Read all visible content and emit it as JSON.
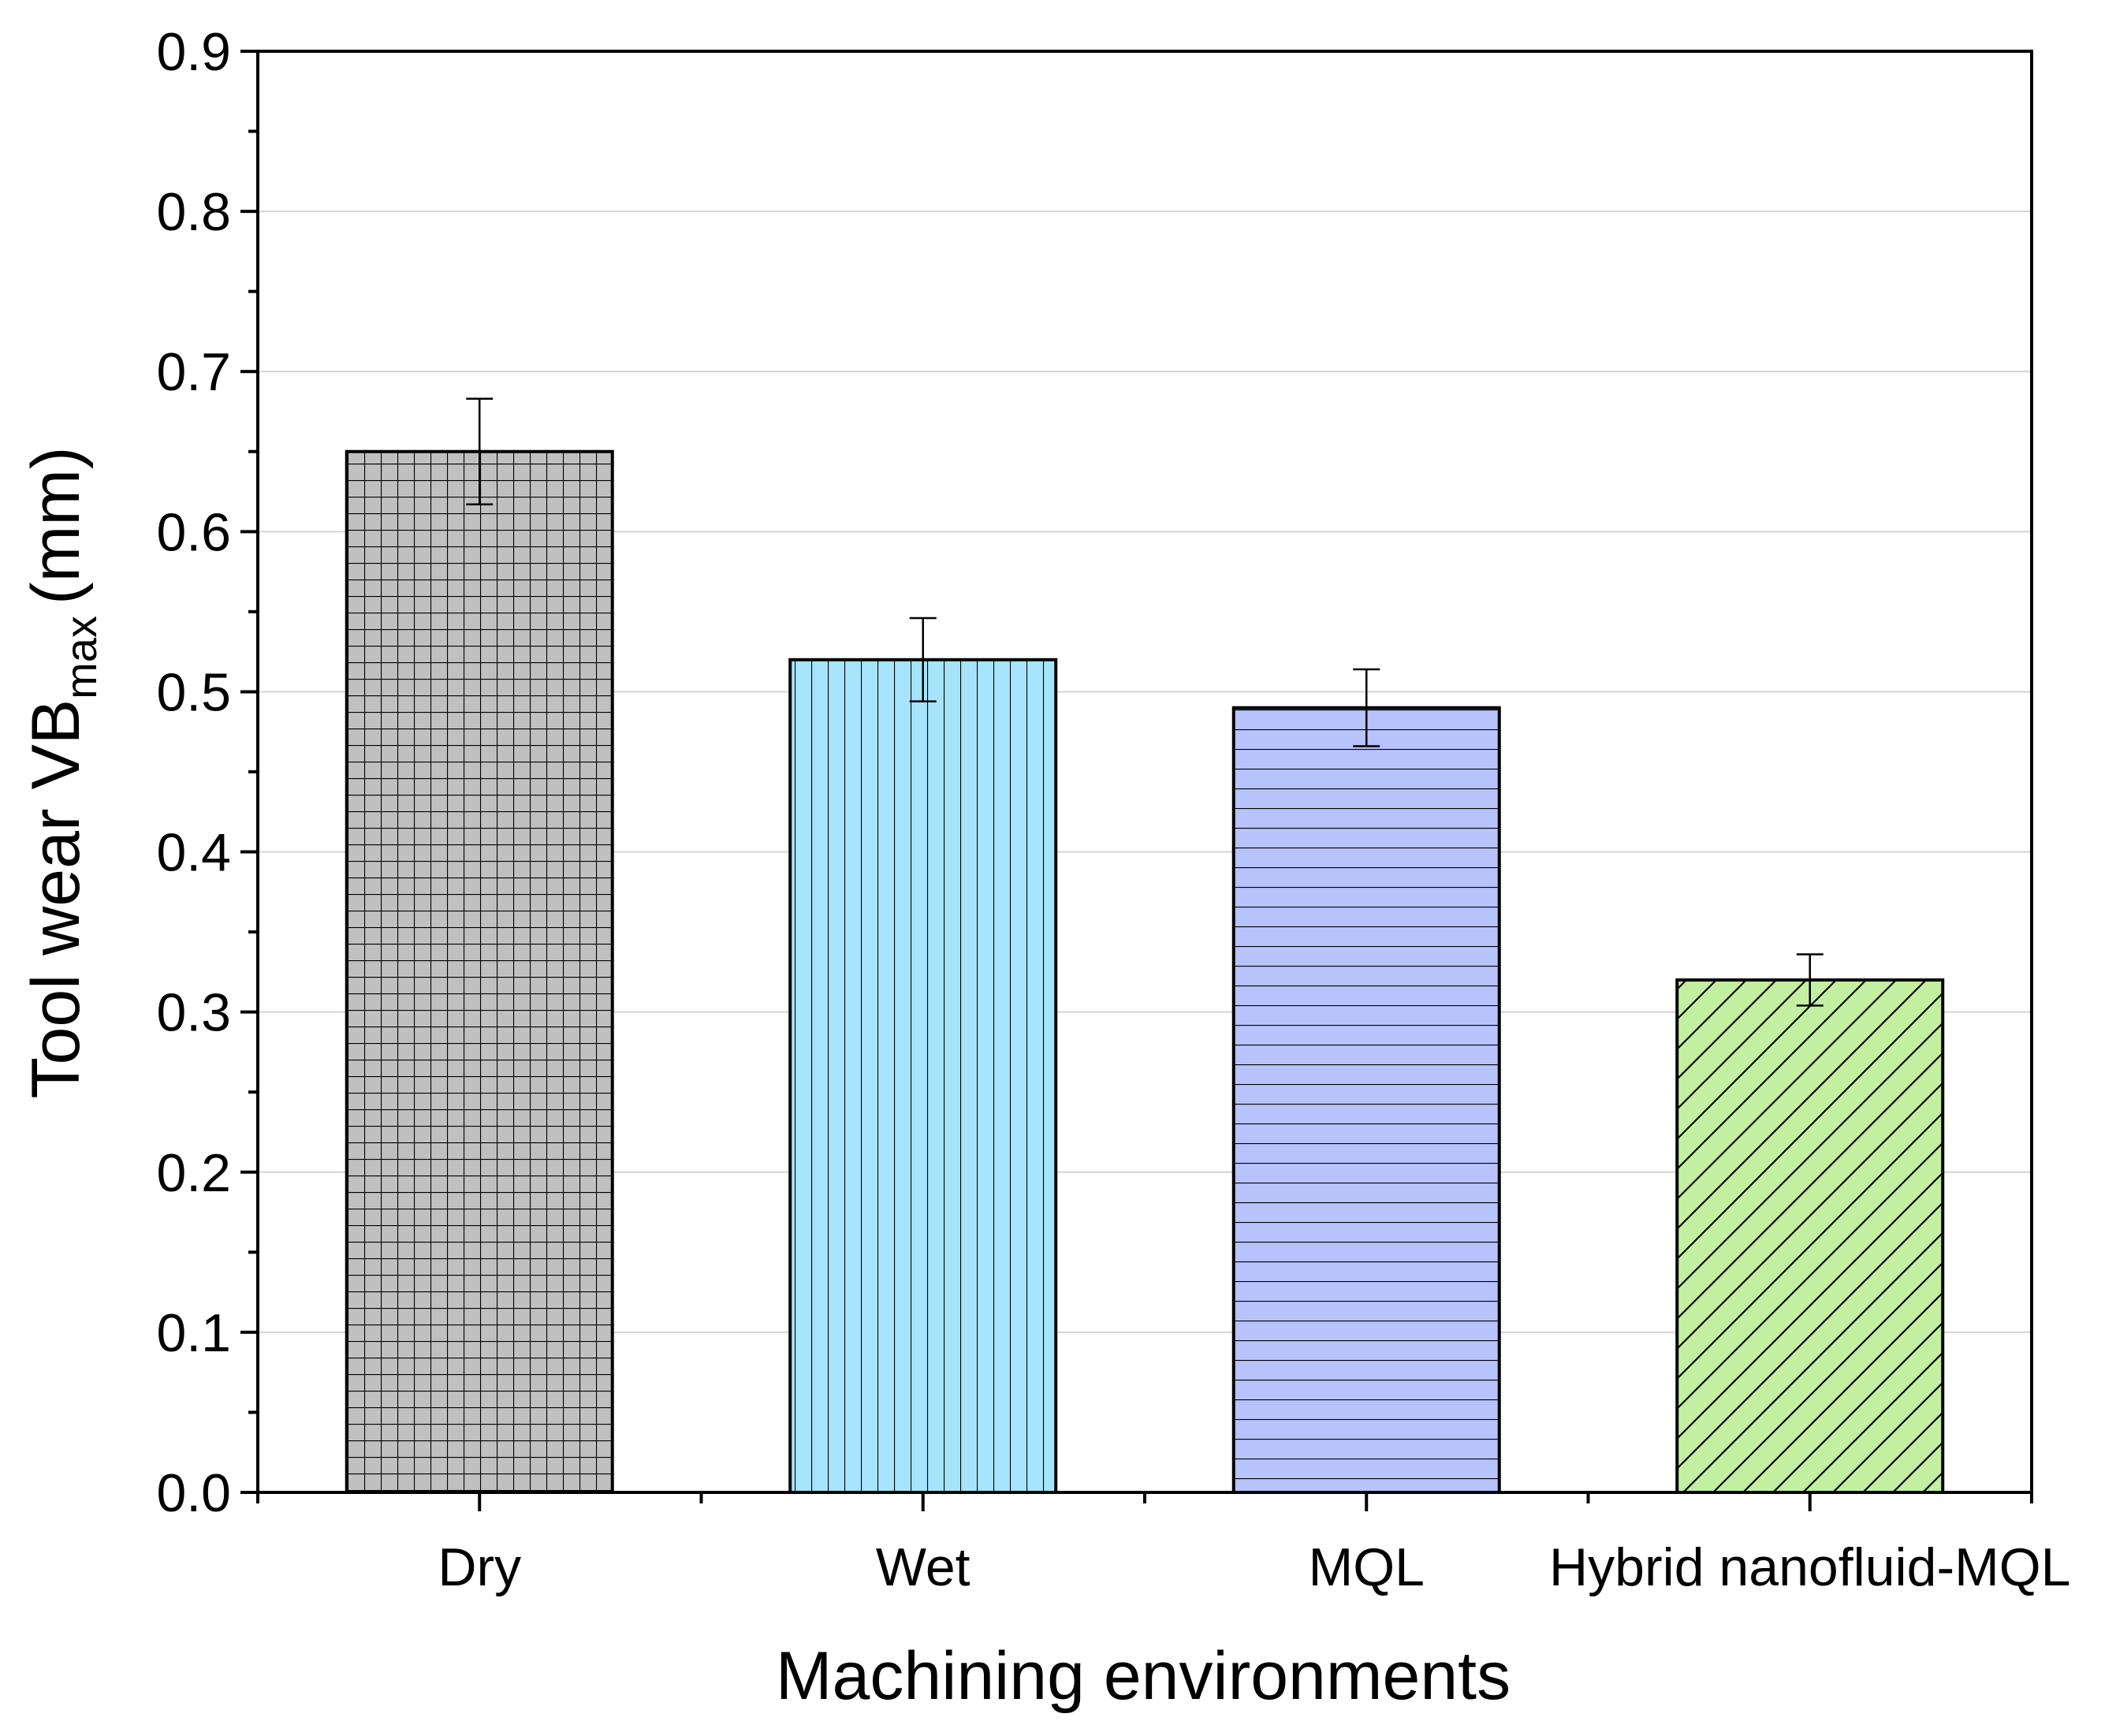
{
  "chart_data": {
    "type": "bar",
    "title": "",
    "xlabel": "Machining environments",
    "ylabel": {
      "main": "Tool wear VB",
      "subscript": "max",
      "unit": "(mm)"
    },
    "ylim": [
      0,
      0.9
    ],
    "yticks": [
      "0.0",
      "0.1",
      "0.2",
      "0.3",
      "0.4",
      "0.5",
      "0.6",
      "0.7",
      "0.8",
      "0.9"
    ],
    "grid": true,
    "categories": [
      "Dry",
      "Wet",
      "MQL",
      "Hybrid nanofluid-MQL"
    ],
    "values": [
      0.65,
      0.52,
      0.49,
      0.32
    ],
    "errors": [
      0.033,
      0.026,
      0.024,
      0.016
    ],
    "colors": [
      "#c0c0c0",
      "#a6e4fb",
      "#b7c3fb",
      "#c3f0a0"
    ],
    "patterns": [
      "grid",
      "vertical",
      "horizontal",
      "diagonal"
    ]
  }
}
